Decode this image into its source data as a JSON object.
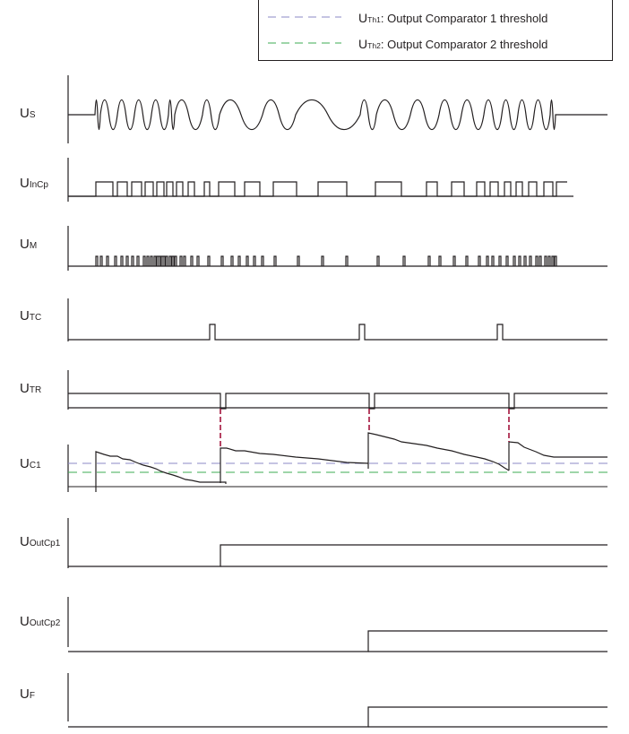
{
  "legend": [
    {
      "symbol": "U",
      "sub": "Th1",
      "text": ": Output Comparator 1 threshold",
      "color": "#8b88c6"
    },
    {
      "symbol": "U",
      "sub": "Th2",
      "text": ": Output Comparator 2 threshold",
      "color": "#3cab53"
    }
  ],
  "signals": [
    {
      "symbol": "U",
      "sub": "S"
    },
    {
      "symbol": "U",
      "sub": "InCp"
    },
    {
      "symbol": "U",
      "sub": "M"
    },
    {
      "symbol": "U",
      "sub": "TC"
    },
    {
      "symbol": "U",
      "sub": "TR"
    },
    {
      "symbol": "U",
      "sub": "C1"
    },
    {
      "symbol": "U",
      "sub": "OutCp1"
    },
    {
      "symbol": "U",
      "sub": "OutCp2"
    },
    {
      "symbol": "U",
      "sub": "F"
    }
  ],
  "colors": {
    "trace": "#231f20",
    "marker": "#a3133c",
    "th1": "#8b88c6",
    "th2": "#3cab53"
  }
}
